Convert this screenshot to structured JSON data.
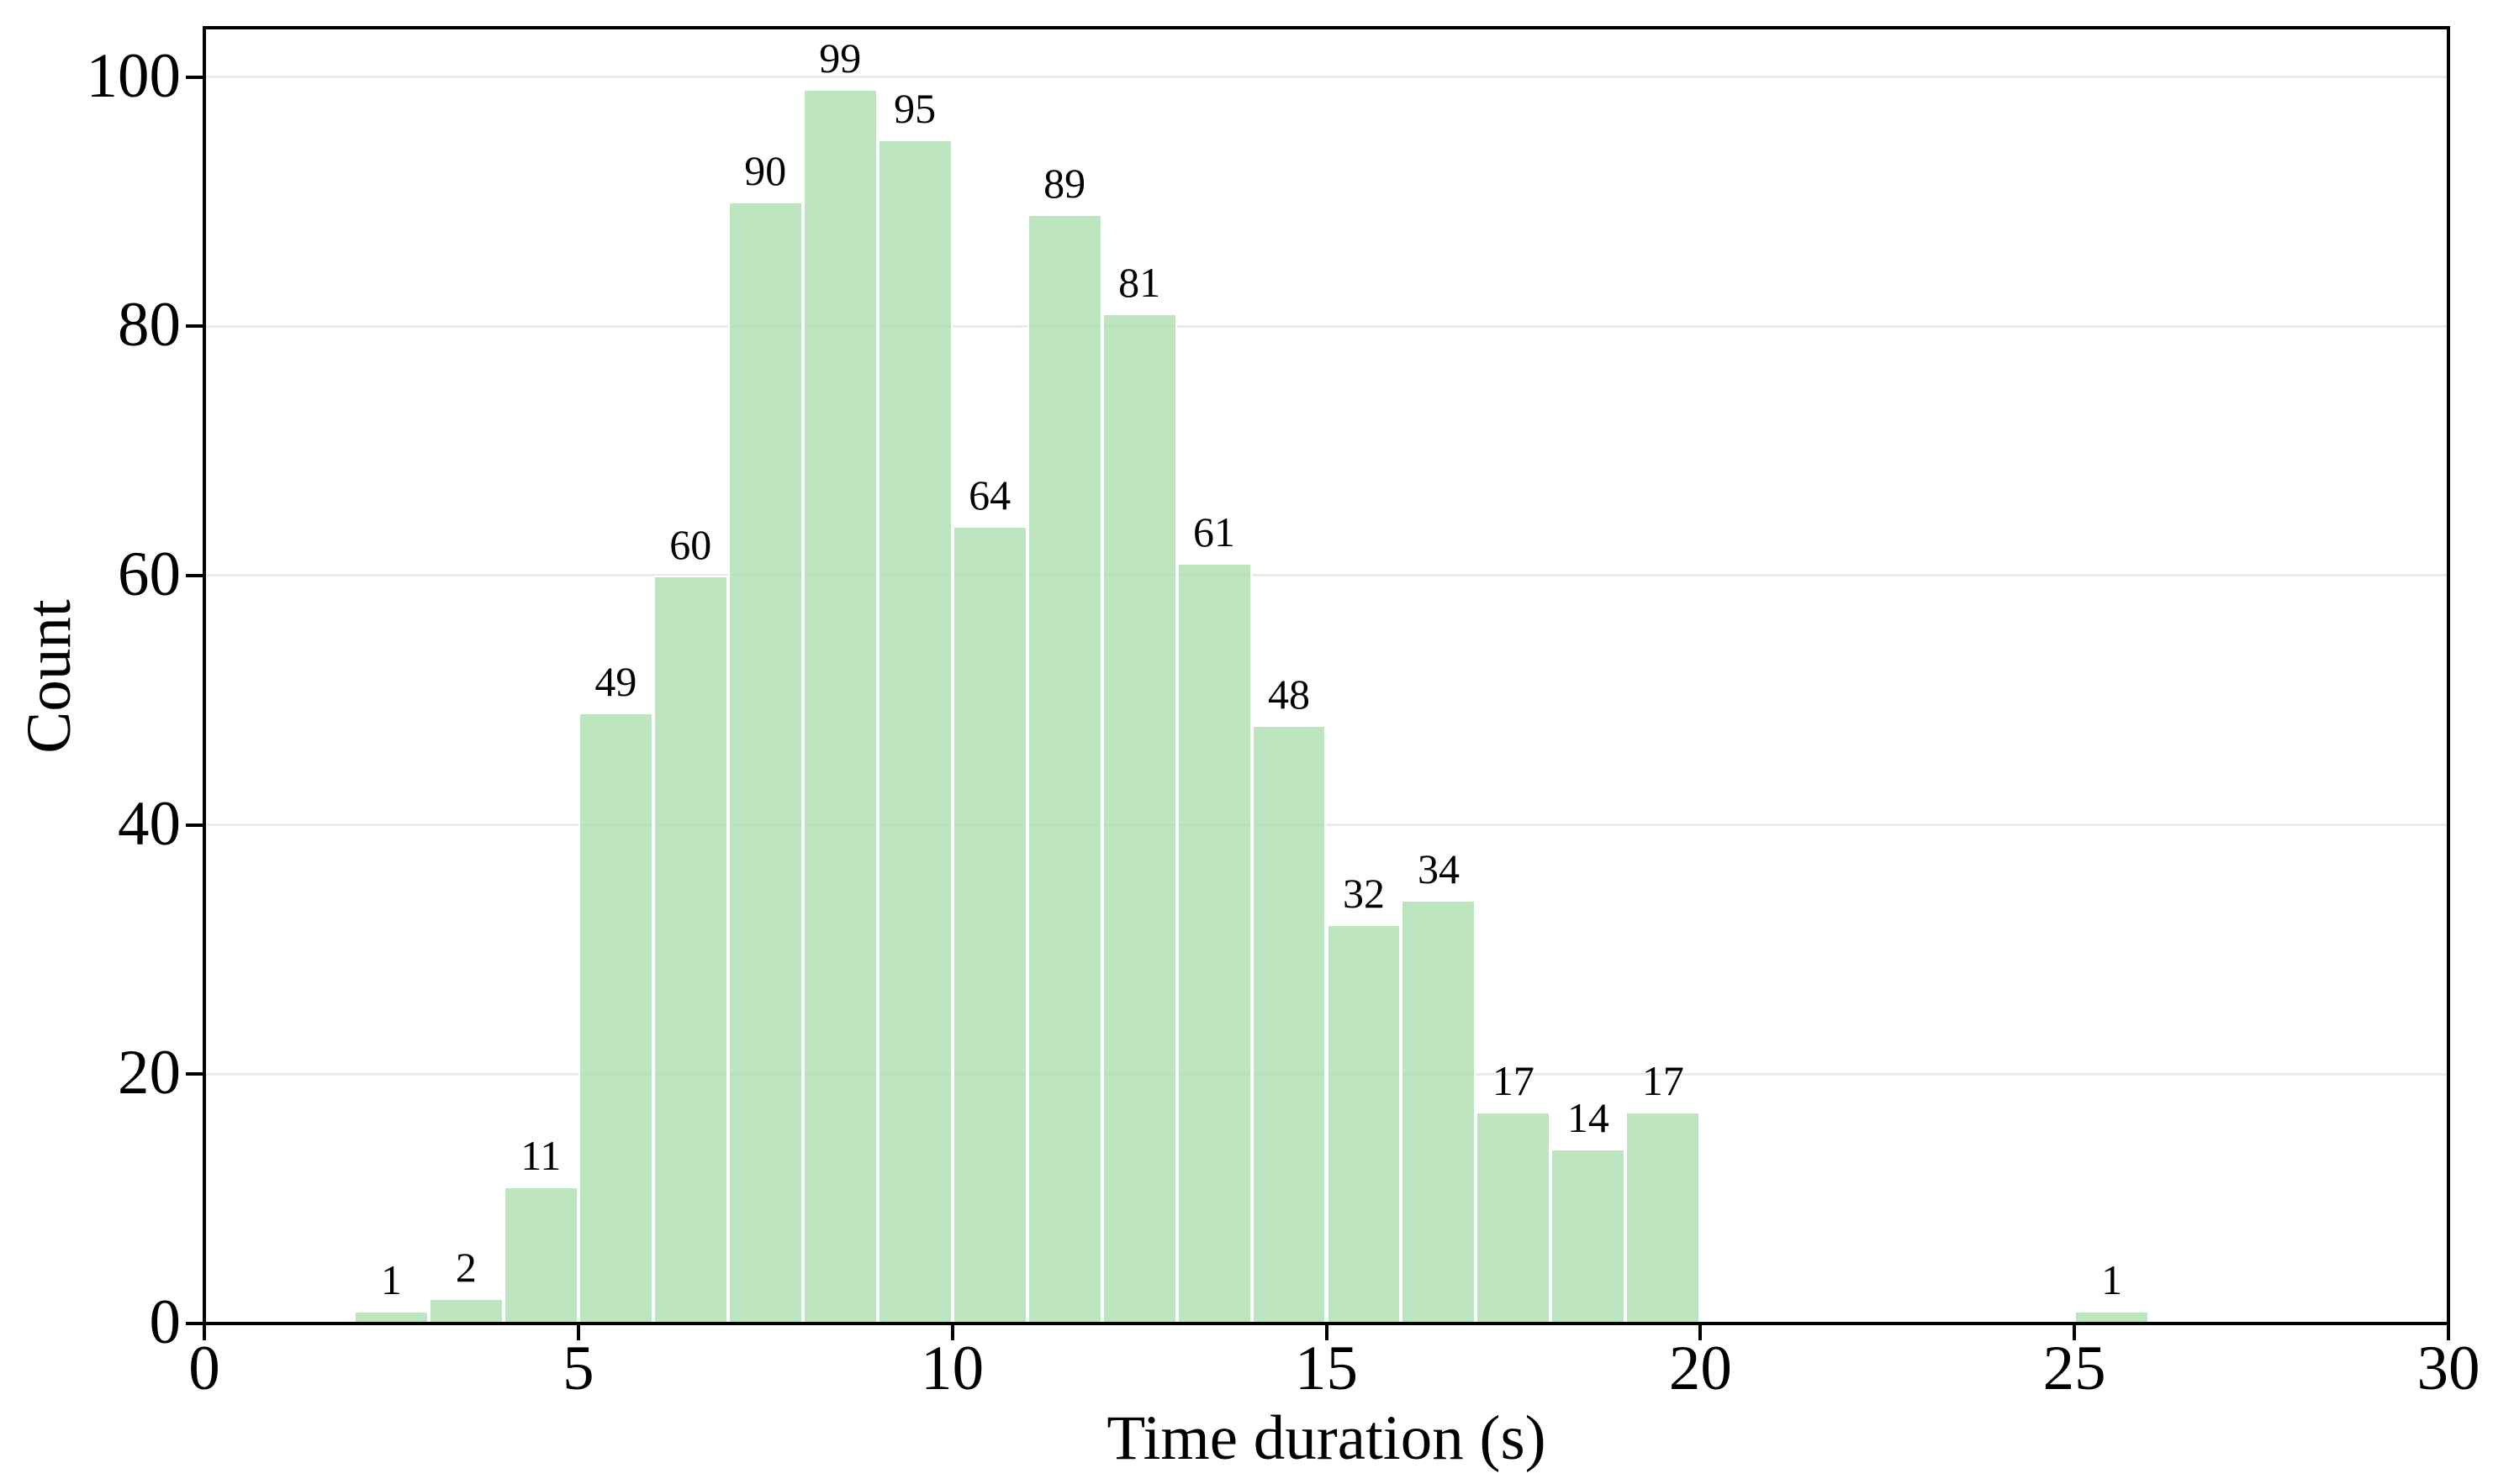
{
  "chart_data": {
    "type": "histogram",
    "title": "",
    "xlabel": "Time duration (s)",
    "ylabel": "Count",
    "xlim": [
      0,
      30
    ],
    "ylim": [
      0,
      103.95
    ],
    "x_ticks": [
      0,
      5,
      10,
      15,
      20,
      25,
      30
    ],
    "y_ticks": [
      0,
      20,
      40,
      60,
      80,
      100
    ],
    "grid": "horizontal-only",
    "legend": "none",
    "bar_fill_color": "rgba(166,220,171,0.75)",
    "bar_fill_hex_on_white": "#bce5c0",
    "bar_edge_color": "#ffffff",
    "grid_color": "#ebebeb",
    "axis_color": "#000000",
    "text_color": "#000000",
    "bins": [
      {
        "x0": 2,
        "x1": 3,
        "count": 1,
        "label": "1"
      },
      {
        "x0": 3,
        "x1": 4,
        "count": 2,
        "label": "2"
      },
      {
        "x0": 4,
        "x1": 5,
        "count": 11,
        "label": "11"
      },
      {
        "x0": 5,
        "x1": 6,
        "count": 49,
        "label": "49"
      },
      {
        "x0": 6,
        "x1": 7,
        "count": 60,
        "label": "60"
      },
      {
        "x0": 7,
        "x1": 8,
        "count": 90,
        "label": "90"
      },
      {
        "x0": 8,
        "x1": 9,
        "count": 99,
        "label": "99"
      },
      {
        "x0": 9,
        "x1": 10,
        "count": 95,
        "label": "95"
      },
      {
        "x0": 10,
        "x1": 11,
        "count": 64,
        "label": "64"
      },
      {
        "x0": 11,
        "x1": 12,
        "count": 89,
        "label": "89"
      },
      {
        "x0": 12,
        "x1": 13,
        "count": 81,
        "label": "81"
      },
      {
        "x0": 13,
        "x1": 14,
        "count": 61,
        "label": "61"
      },
      {
        "x0": 14,
        "x1": 15,
        "count": 48,
        "label": "48"
      },
      {
        "x0": 15,
        "x1": 16,
        "count": 32,
        "label": "32"
      },
      {
        "x0": 16,
        "x1": 17,
        "count": 34,
        "label": "34"
      },
      {
        "x0": 17,
        "x1": 18,
        "count": 17,
        "label": "17"
      },
      {
        "x0": 18,
        "x1": 19,
        "count": 14,
        "label": "14"
      },
      {
        "x0": 19,
        "x1": 20,
        "count": 17,
        "label": "17"
      },
      {
        "x0": 25,
        "x1": 26,
        "count": 1,
        "label": "1"
      }
    ]
  }
}
